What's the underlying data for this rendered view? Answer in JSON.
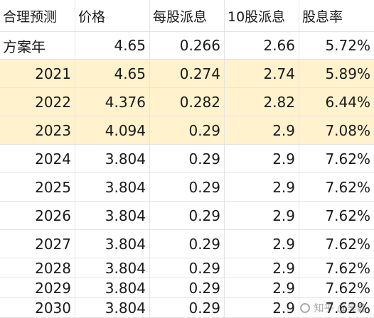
{
  "table": {
    "headers": [
      "合理预测",
      "价格",
      "每股派息",
      "10股派息",
      "股息率"
    ],
    "rows": [
      {
        "year": "方案年",
        "price": "4.65",
        "dps": "0.266",
        "dps10": "2.66",
        "yield": "5.72%",
        "highlight": false
      },
      {
        "year": "2021",
        "price": "4.65",
        "dps": "0.274",
        "dps10": "2.74",
        "yield": "5.89%",
        "highlight": true
      },
      {
        "year": "2022",
        "price": "4.376",
        "dps": "0.282",
        "dps10": "2.82",
        "yield": "6.44%",
        "highlight": true
      },
      {
        "year": "2023",
        "price": "4.094",
        "dps": "0.29",
        "dps10": "2.9",
        "yield": "7.08%",
        "highlight": true
      },
      {
        "year": "2024",
        "price": "3.804",
        "dps": "0.29",
        "dps10": "2.9",
        "yield": "7.62%",
        "highlight": false
      },
      {
        "year": "2025",
        "price": "3.804",
        "dps": "0.29",
        "dps10": "2.9",
        "yield": "7.62%",
        "highlight": false
      },
      {
        "year": "2026",
        "price": "3.804",
        "dps": "0.29",
        "dps10": "2.9",
        "yield": "7.62%",
        "highlight": false
      },
      {
        "year": "2027",
        "price": "3.804",
        "dps": "0.29",
        "dps10": "2.9",
        "yield": "7.62%",
        "highlight": false
      },
      {
        "year": "2028",
        "price": "3.804",
        "dps": "0.29",
        "dps10": "2.9",
        "yield": "7.62%",
        "highlight": false
      },
      {
        "year": "2029",
        "price": "3.804",
        "dps": "0.29",
        "dps10": "2.9",
        "yield": "7.62%",
        "highlight": false
      },
      {
        "year": "2030",
        "price": "3.804",
        "dps": "0.29",
        "dps10": "2.9",
        "yield": "7.62%",
        "highlight": false
      }
    ]
  },
  "watermark": {
    "text": "知乎 @昊鑫",
    "icon": "zhihu-logo-icon"
  },
  "colors": {
    "highlight": "#fff2cc",
    "grid": "#e4e4e4"
  }
}
